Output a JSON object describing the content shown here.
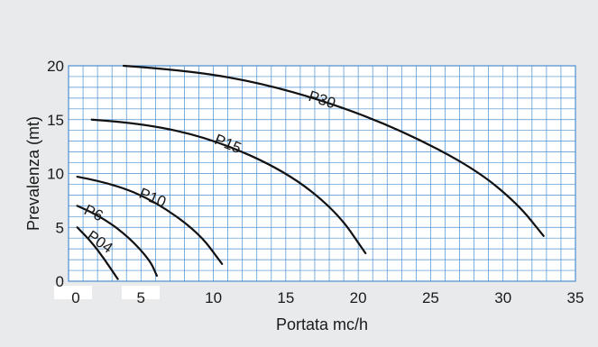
{
  "chart_data": {
    "type": "line",
    "xlabel": "Portata mc/h",
    "ylabel": "Prevalenza (mt)",
    "xlim": [
      0,
      35
    ],
    "ylim": [
      0,
      20
    ],
    "x_ticks": [
      "0",
      "5",
      "10",
      "15",
      "20",
      "25",
      "30",
      "35"
    ],
    "y_ticks": [
      "0",
      "5",
      "10",
      "15",
      "20"
    ],
    "grid": true,
    "colors": {
      "background": "#e9eaec",
      "plot": "#ffffff",
      "grid": "#4a8fd0",
      "curve": "#111111"
    },
    "series": [
      {
        "name": "P04",
        "x": [
          0.6,
          1.5,
          2.5,
          3.4
        ],
        "y": [
          5.0,
          3.8,
          2.0,
          0.2
        ]
      },
      {
        "name": "P6",
        "x": [
          0.6,
          2.0,
          4.0,
          5.6,
          6.1
        ],
        "y": [
          7.0,
          6.2,
          4.3,
          2.0,
          0.5
        ]
      },
      {
        "name": "P10",
        "x": [
          0.6,
          3.0,
          6.0,
          9.0,
          10.6
        ],
        "y": [
          9.7,
          9.1,
          7.4,
          4.5,
          1.6
        ]
      },
      {
        "name": "P15",
        "x": [
          1.6,
          5.0,
          10.0,
          15.0,
          18.5,
          20.5
        ],
        "y": [
          15.0,
          14.7,
          13.2,
          10.2,
          6.5,
          2.6
        ]
      },
      {
        "name": "P30",
        "x": [
          3.8,
          8.0,
          13.0,
          18.0,
          23.0,
          28.0,
          31.0,
          32.8
        ],
        "y": [
          20.0,
          19.6,
          18.5,
          16.6,
          14.0,
          10.5,
          7.2,
          4.2
        ]
      }
    ]
  }
}
